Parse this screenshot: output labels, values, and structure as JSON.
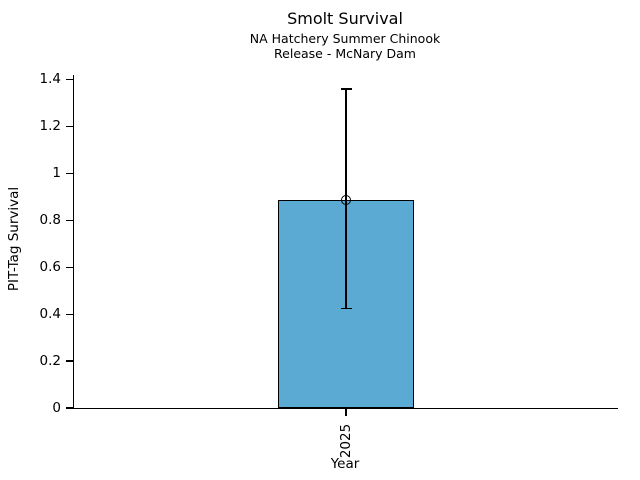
{
  "chart_data": {
    "type": "bar",
    "title": "Smolt Survival",
    "subtitle": [
      "NA Hatchery Summer Chinook",
      "Release - McNary Dam"
    ],
    "xlabel": "Year",
    "ylabel": "PIT-Tag Survival",
    "categories": [
      "2025"
    ],
    "values": [
      0.886
    ],
    "error_low": [
      0.425
    ],
    "error_high": [
      1.36
    ],
    "marker": "open-circle",
    "yticks": [
      0,
      0.2,
      0.4,
      0.6,
      0.8,
      1,
      1.2,
      1.4
    ],
    "ytick_labels": [
      "0",
      "0.2",
      "0.4",
      "0.6",
      "0.8",
      "1",
      "1.2",
      "1.4"
    ],
    "ylim": [
      0,
      1.419
    ],
    "xtick_rotation_deg": 90,
    "bar_color": "#5aaad3",
    "edge_color": "#000000",
    "grid": false,
    "legend": null
  }
}
